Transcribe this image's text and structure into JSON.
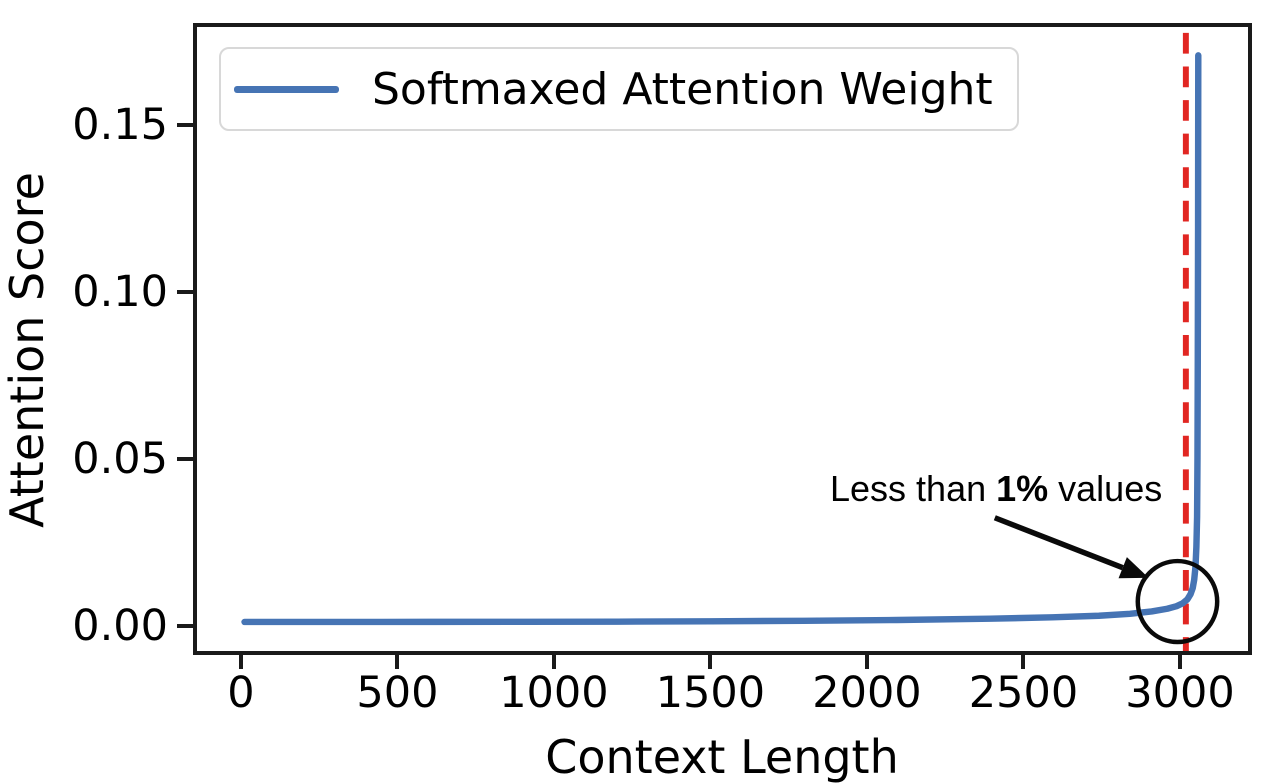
{
  "figure": {
    "background": "#ffffff",
    "border_color": "#1a1a1a"
  },
  "legend": {
    "position": "upper left"
  },
  "chart_data": {
    "type": "line",
    "title": "",
    "xlabel": "Context Length",
    "ylabel": "Attention Score",
    "x_ticks": [
      0,
      500,
      1000,
      1500,
      2000,
      2500,
      3000
    ],
    "x_tick_labels": [
      "0",
      "500",
      "1000",
      "1500",
      "2000",
      "2500",
      "3000"
    ],
    "y_ticks": [
      0.0,
      0.05,
      0.1,
      0.15
    ],
    "y_tick_labels": [
      "0.00",
      "0.05",
      "0.10",
      "0.15"
    ],
    "xlim": [
      -153,
      3230
    ],
    "ylim": [
      -0.0086,
      0.1806
    ],
    "grid": false,
    "legend_position": "upper left",
    "series": [
      {
        "name": "Softmaxed Attention Weight",
        "color": "#4674b4",
        "line_width": 6.5,
        "points": [
          [
            0,
            0.0002
          ],
          [
            300,
            0.0002
          ],
          [
            600,
            0.00022
          ],
          [
            900,
            0.00025
          ],
          [
            1200,
            0.0003
          ],
          [
            1500,
            0.0004
          ],
          [
            1800,
            0.00055
          ],
          [
            2100,
            0.0008
          ],
          [
            2400,
            0.0012
          ],
          [
            2600,
            0.0016
          ],
          [
            2750,
            0.0021
          ],
          [
            2850,
            0.0027
          ],
          [
            2920,
            0.0034
          ],
          [
            2970,
            0.0042
          ],
          [
            3000,
            0.005
          ],
          [
            3020,
            0.0059
          ],
          [
            3035,
            0.0071
          ],
          [
            3045,
            0.0086
          ],
          [
            3052,
            0.0105
          ],
          [
            3057,
            0.013
          ],
          [
            3061,
            0.017
          ],
          [
            3064,
            0.023
          ],
          [
            3066,
            0.032
          ],
          [
            3067.5,
            0.05
          ],
          [
            3068.5,
            0.08
          ],
          [
            3069.2,
            0.12
          ],
          [
            3069.7,
            0.15
          ],
          [
            3070,
            0.172
          ]
        ]
      }
    ],
    "vline": {
      "x": 3030,
      "color": "#e12622",
      "style": "dashed",
      "line_width": 6
    },
    "annotation": {
      "text_prefix": "Less than ",
      "text_bold": "1%",
      "text_suffix": " values",
      "color": "#000000",
      "arrow_color": "#0a0a0a",
      "arrow_start": [
        2415,
        0.0318
      ],
      "arrow_end": [
        2910,
        0.0136
      ],
      "circle_center": [
        3003,
        0.0064
      ],
      "circle_radius_px": [
        40,
        41
      ],
      "circle_color": "#0a0a0a"
    }
  }
}
